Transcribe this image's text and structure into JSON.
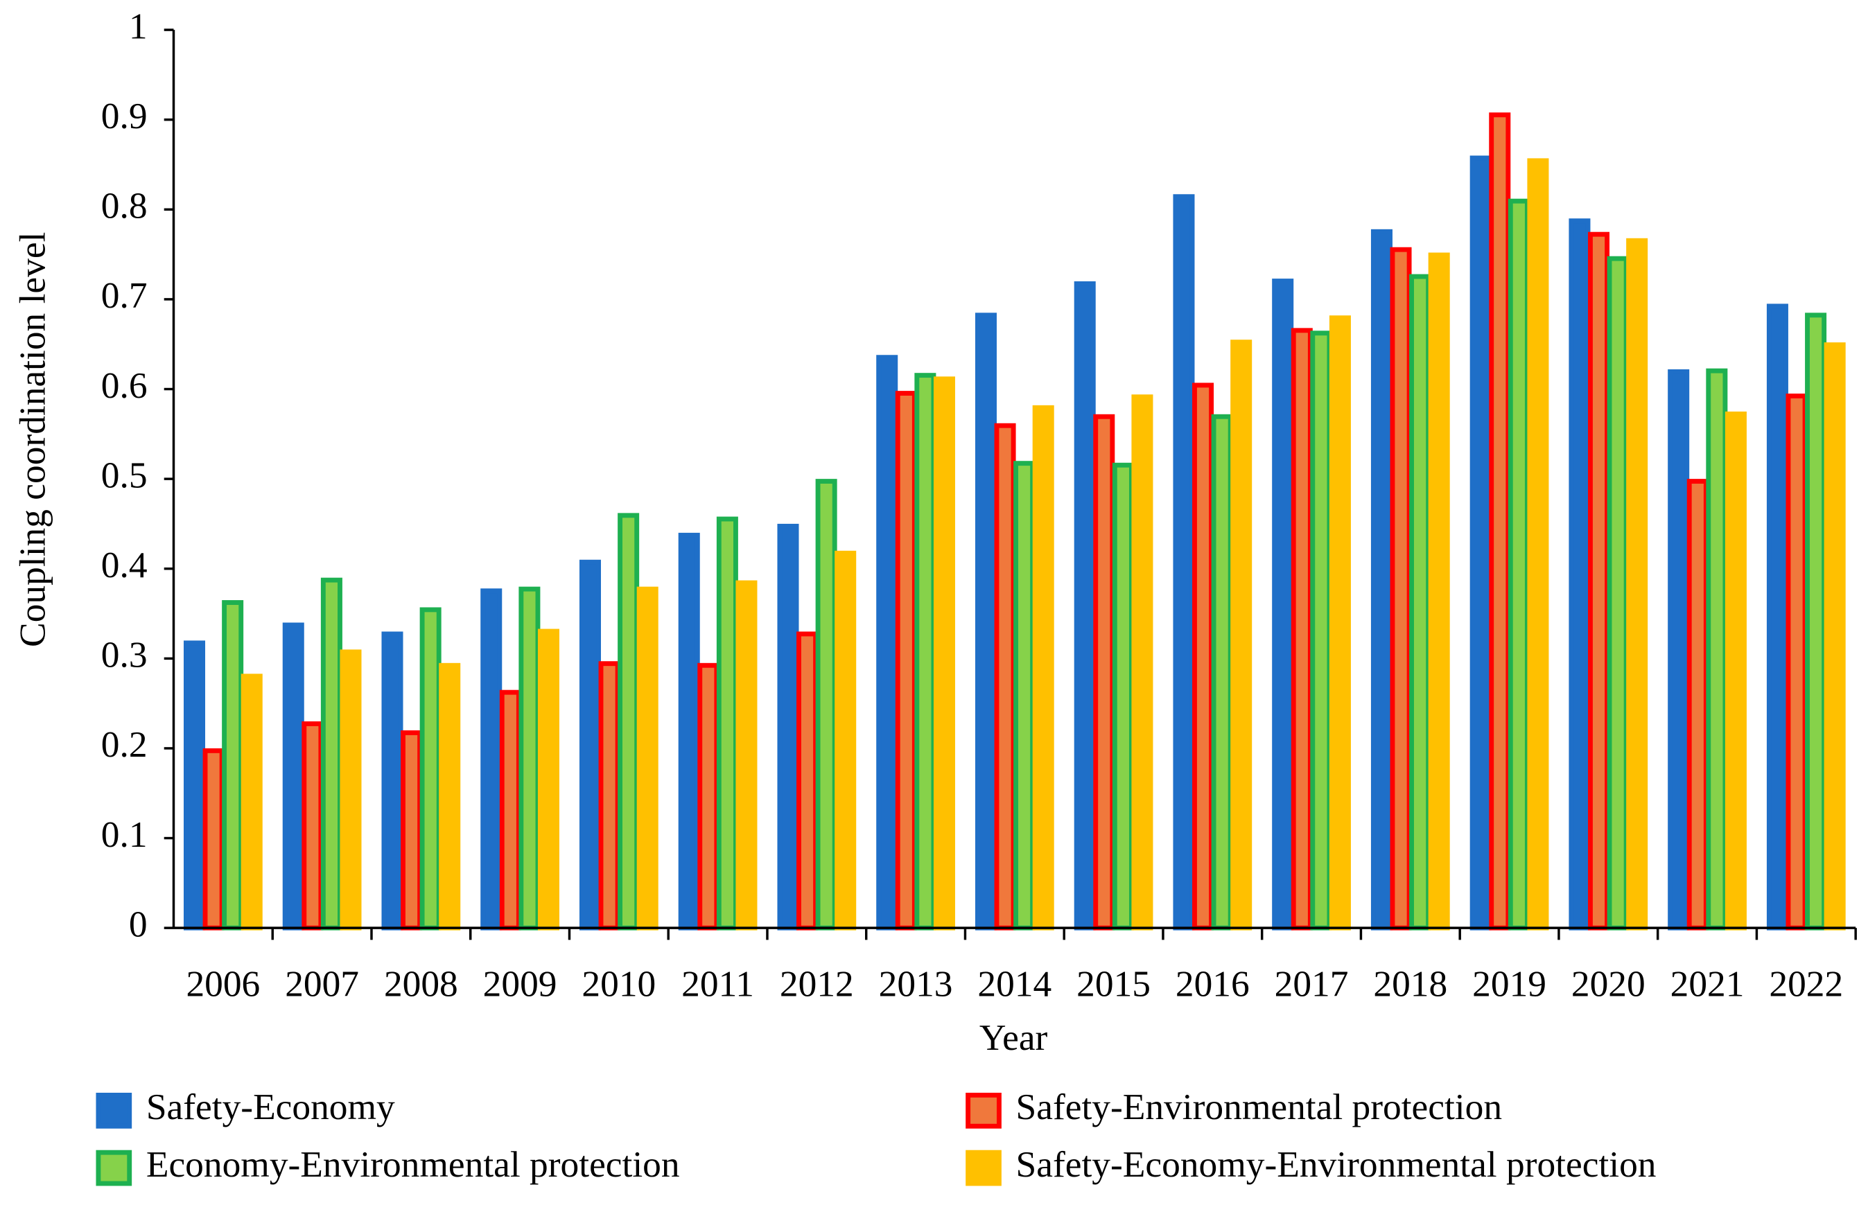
{
  "chart_data": {
    "type": "bar",
    "x_label": "Year",
    "y_label": "Coupling coordination level",
    "categories": [
      "2006",
      "2007",
      "2008",
      "2009",
      "2010",
      "2011",
      "2012",
      "2013",
      "2014",
      "2015",
      "2016",
      "2017",
      "2018",
      "2019",
      "2020",
      "2021",
      "2022"
    ],
    "series": [
      {
        "name": "Safety-Economy",
        "color": "#1f6fc8",
        "fill": "#1f6fc8",
        "values": [
          0.32,
          0.34,
          0.33,
          0.378,
          0.41,
          0.44,
          0.45,
          0.638,
          0.685,
          0.72,
          0.817,
          0.723,
          0.778,
          0.86,
          0.79,
          0.622,
          0.695
        ]
      },
      {
        "name": "Safety-Environmental protection",
        "color": "#ff0000",
        "fill": "#f0783c",
        "values": [
          0.2,
          0.23,
          0.22,
          0.265,
          0.297,
          0.295,
          0.33,
          0.598,
          0.562,
          0.572,
          0.607,
          0.668,
          0.758,
          0.908,
          0.775,
          0.5,
          0.595
        ]
      },
      {
        "name": "Economy-Environmental protection",
        "color": "#1eb050",
        "fill": "#86d24a",
        "values": [
          0.365,
          0.39,
          0.357,
          0.38,
          0.462,
          0.458,
          0.5,
          0.618,
          0.52,
          0.518,
          0.572,
          0.665,
          0.728,
          0.812,
          0.748,
          0.623,
          0.685
        ]
      },
      {
        "name": "Safety-Economy-Environmental protection",
        "color": "#ffc000",
        "fill": "#ffc000",
        "values": [
          0.283,
          0.31,
          0.295,
          0.333,
          0.38,
          0.387,
          0.42,
          0.614,
          0.582,
          0.594,
          0.655,
          0.682,
          0.752,
          0.857,
          0.768,
          0.575,
          0.652
        ]
      }
    ],
    "ylim": [
      0,
      1
    ],
    "yticks": [
      0,
      0.1,
      0.2,
      0.3,
      0.4,
      0.5,
      0.6,
      0.7,
      0.8,
      0.9,
      1
    ],
    "grid": false
  }
}
